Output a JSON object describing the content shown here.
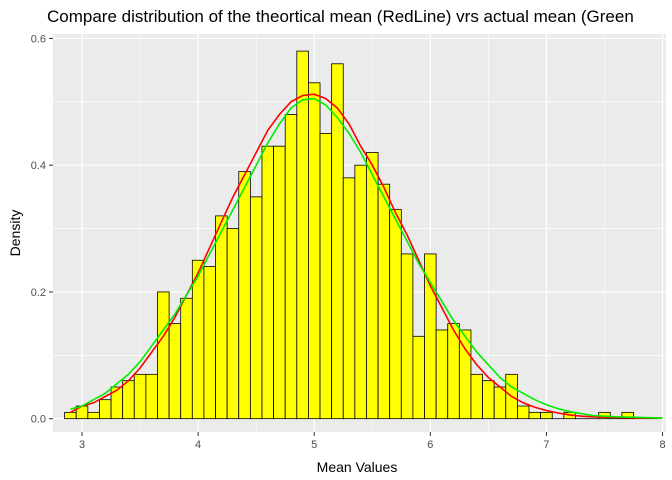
{
  "chart_data": {
    "type": "bar",
    "title": "Compare distribution of the theortical mean (RedLine) vrs actual mean (Green",
    "xlabel": "Mean Values",
    "ylabel": "Density",
    "xlim": [
      2.75,
      8.03
    ],
    "ylim": [
      -0.021,
      0.607
    ],
    "x_ticks": [
      "3",
      "4",
      "5",
      "6",
      "7",
      "8"
    ],
    "y_ticks": [
      "0.0",
      "0.2",
      "0.4",
      "0.6"
    ],
    "grid": true,
    "bin_width": 0.1,
    "bins": {
      "start": 2.85,
      "densities": [
        0.01,
        0.02,
        0.01,
        0.03,
        0.05,
        0.06,
        0.07,
        0.07,
        0.2,
        0.15,
        0.19,
        0.25,
        0.24,
        0.32,
        0.3,
        0.39,
        0.35,
        0.43,
        0.43,
        0.48,
        0.58,
        0.53,
        0.45,
        0.56,
        0.38,
        0.4,
        0.42,
        0.37,
        0.33,
        0.26,
        0.13,
        0.26,
        0.14,
        0.15,
        0.14,
        0.07,
        0.06,
        0.05,
        0.07,
        0.02,
        0.01,
        0.01,
        0.0,
        0.01,
        0.0,
        0.0,
        0.01,
        0.0,
        0.01,
        0.0,
        0.0
      ]
    },
    "series": [
      {
        "name": "RedLine",
        "color": "#ff0000",
        "x": [
          2.9,
          3.0,
          3.1,
          3.2,
          3.3,
          3.4,
          3.5,
          3.6,
          3.7,
          3.8,
          3.9,
          4.0,
          4.1,
          4.2,
          4.3,
          4.4,
          4.5,
          4.6,
          4.7,
          4.8,
          4.9,
          5.0,
          5.1,
          5.2,
          5.3,
          5.4,
          5.5,
          5.6,
          5.7,
          5.8,
          5.9,
          6.0,
          6.1,
          6.2,
          6.3,
          6.4,
          6.5,
          6.6,
          6.7,
          6.8,
          6.9,
          7.0,
          7.1,
          7.2,
          7.3,
          7.4,
          7.6,
          7.8,
          8.0
        ],
        "y": [
          0.01,
          0.02,
          0.025,
          0.035,
          0.045,
          0.06,
          0.08,
          0.105,
          0.13,
          0.16,
          0.195,
          0.23,
          0.27,
          0.31,
          0.35,
          0.385,
          0.42,
          0.455,
          0.48,
          0.5,
          0.51,
          0.512,
          0.505,
          0.49,
          0.465,
          0.43,
          0.4,
          0.365,
          0.325,
          0.29,
          0.25,
          0.21,
          0.175,
          0.14,
          0.11,
          0.085,
          0.065,
          0.05,
          0.035,
          0.025,
          0.018,
          0.013,
          0.009,
          0.006,
          0.004,
          0.003,
          0.002,
          0.001,
          0.001
        ]
      },
      {
        "name": "Green",
        "color": "#00ee00",
        "x": [
          2.9,
          3.0,
          3.1,
          3.2,
          3.3,
          3.4,
          3.5,
          3.6,
          3.7,
          3.8,
          3.9,
          4.0,
          4.1,
          4.2,
          4.3,
          4.4,
          4.5,
          4.6,
          4.7,
          4.8,
          4.9,
          5.0,
          5.1,
          5.2,
          5.3,
          5.4,
          5.5,
          5.6,
          5.7,
          5.8,
          5.9,
          6.0,
          6.1,
          6.2,
          6.3,
          6.4,
          6.5,
          6.6,
          6.7,
          6.8,
          6.9,
          7.0,
          7.1,
          7.2,
          7.3,
          7.4,
          7.6,
          7.8,
          8.0
        ],
        "y": [
          0.015,
          0.02,
          0.03,
          0.04,
          0.055,
          0.07,
          0.09,
          0.115,
          0.14,
          0.165,
          0.195,
          0.225,
          0.26,
          0.295,
          0.33,
          0.365,
          0.4,
          0.435,
          0.465,
          0.49,
          0.503,
          0.505,
          0.495,
          0.475,
          0.45,
          0.42,
          0.385,
          0.35,
          0.315,
          0.28,
          0.245,
          0.215,
          0.185,
          0.155,
          0.13,
          0.105,
          0.085,
          0.065,
          0.05,
          0.04,
          0.03,
          0.022,
          0.016,
          0.011,
          0.008,
          0.005,
          0.003,
          0.002,
          0.001
        ]
      }
    ]
  },
  "style": {
    "panel_background": "#ebebeb",
    "grid_color": "#ffffff",
    "bar_fill": "#ffff00",
    "bar_stroke": "#000000"
  }
}
